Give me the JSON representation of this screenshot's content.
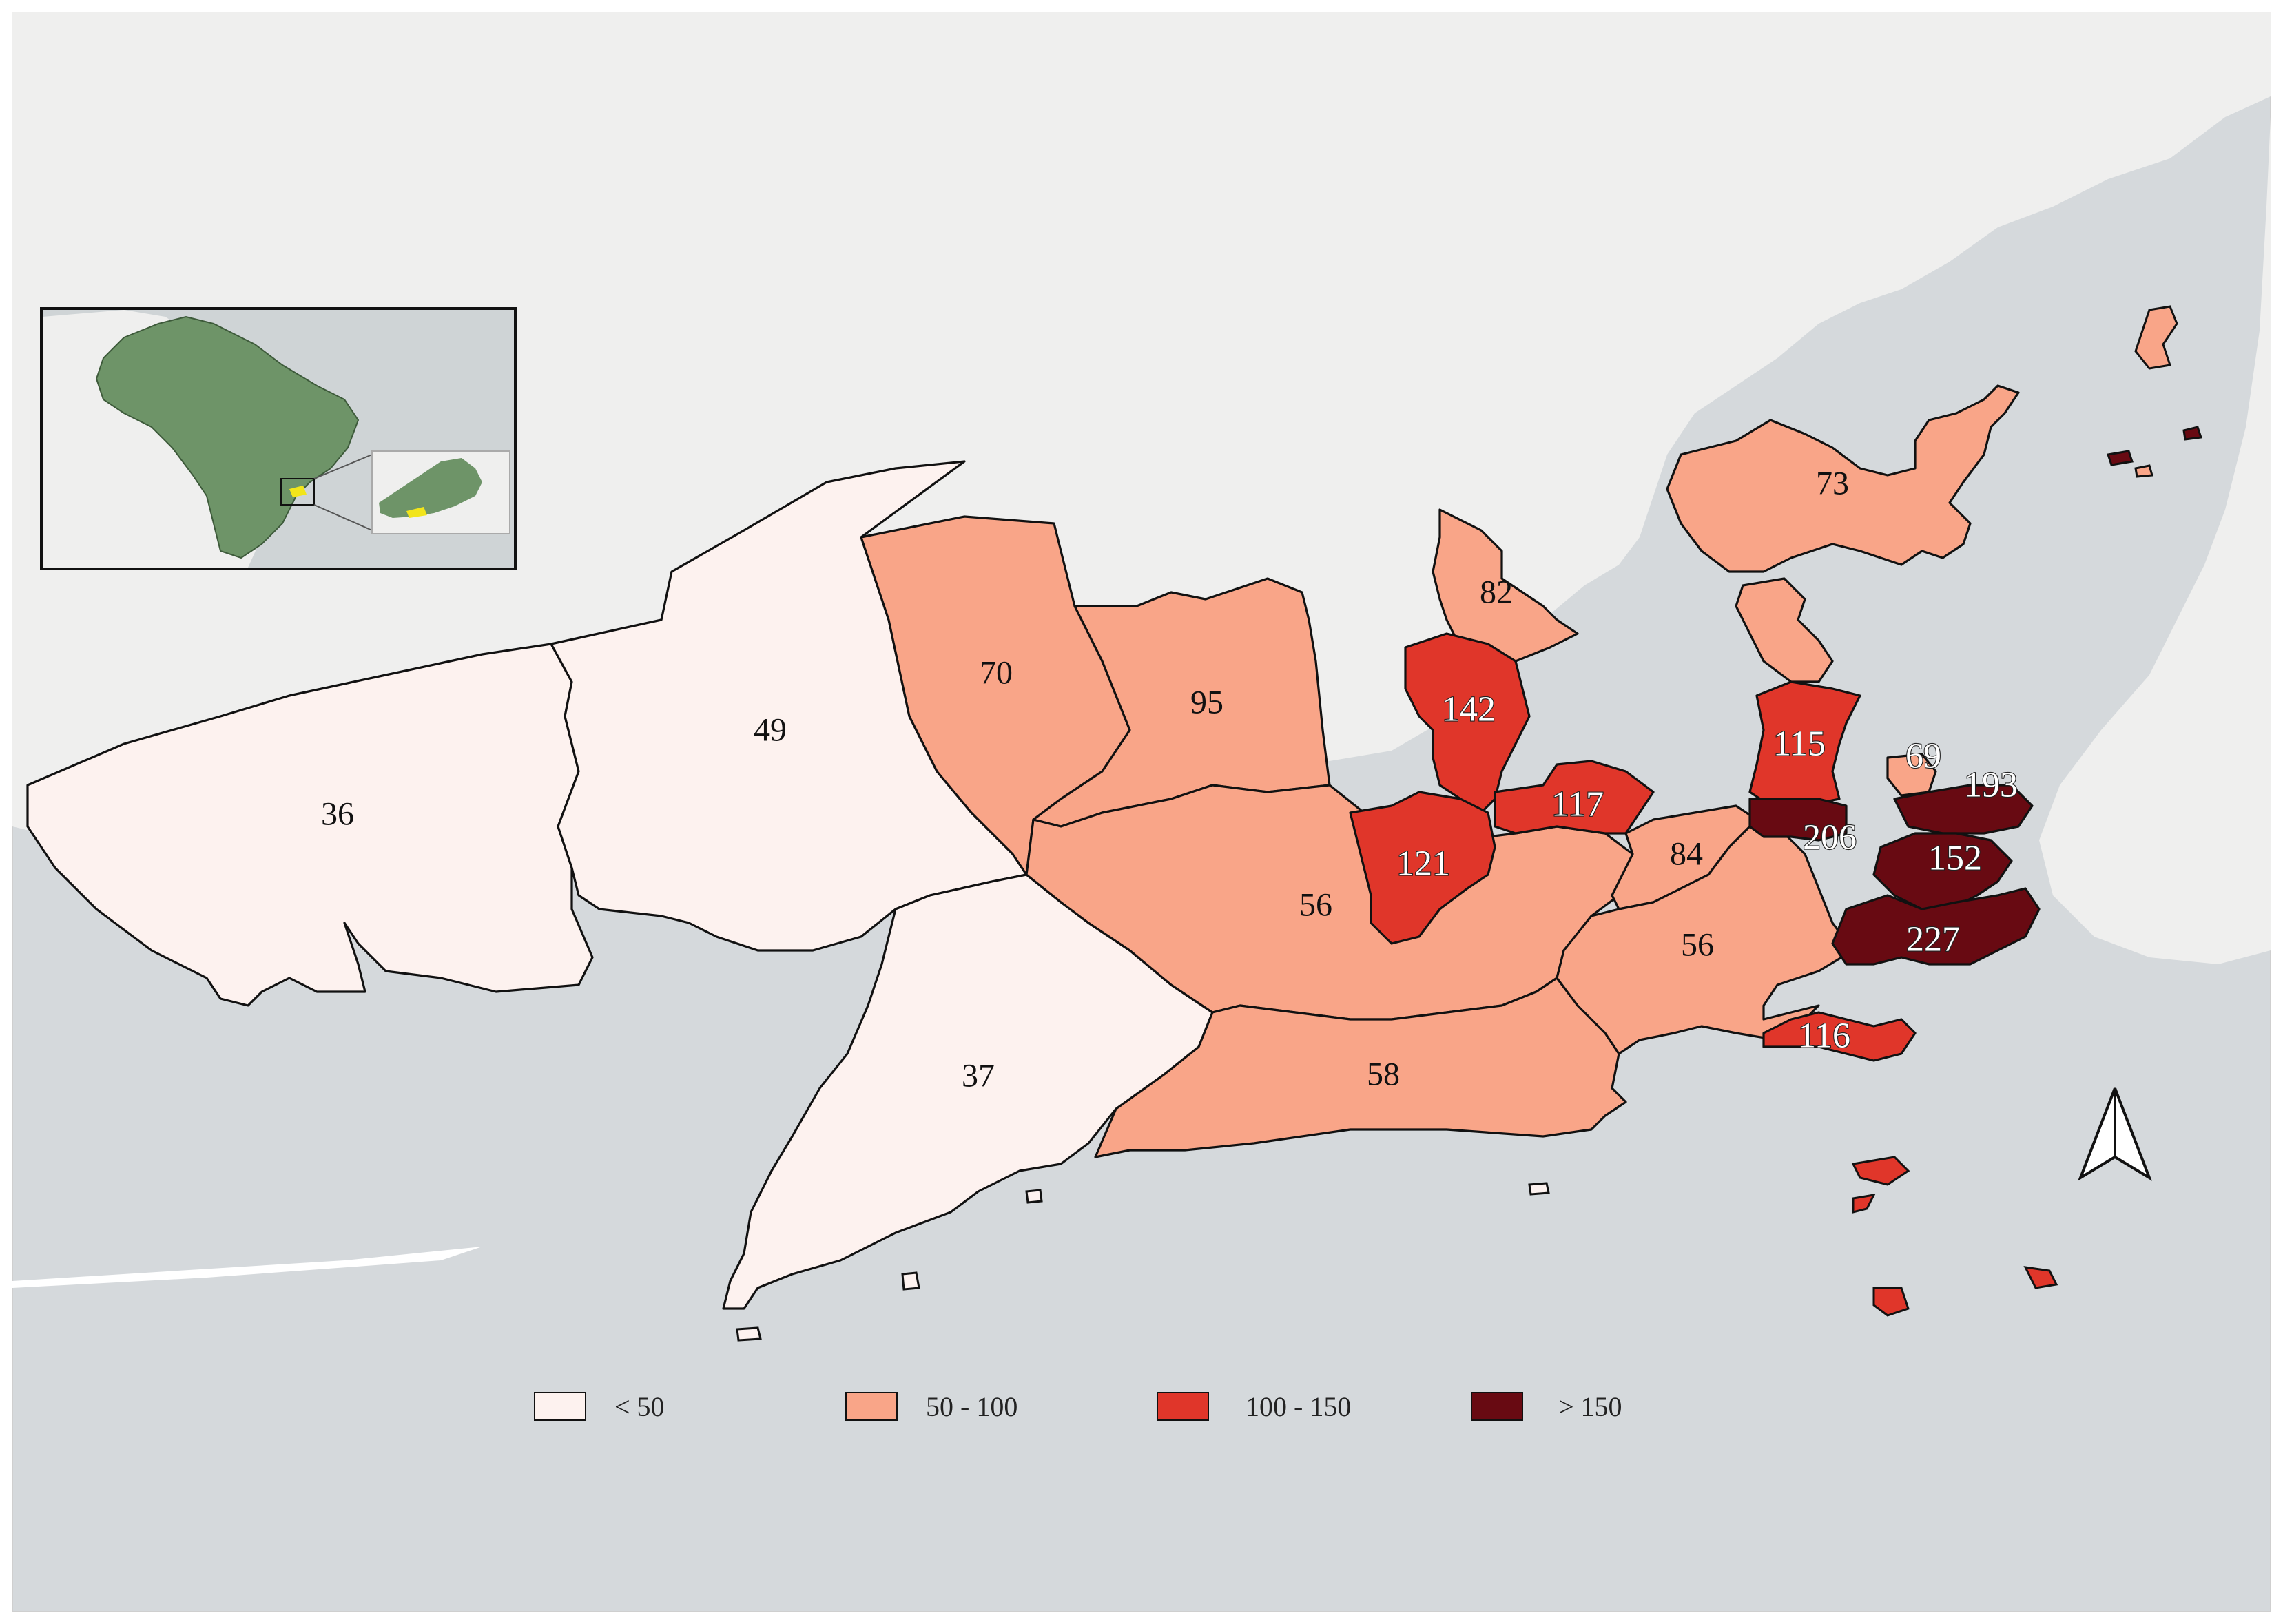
{
  "colors": {
    "background_land": "#efefee",
    "sea": "#d5d9dc",
    "class_lt50": "#fdf2ef",
    "class_50_100": "#f9a588",
    "class_100_150": "#e0362a",
    "class_gt150": "#680a12",
    "inset_land": "#6e9468",
    "inset_highlight": "#f2e51a"
  },
  "regions": [
    {
      "id": "r36",
      "value": "36"
    },
    {
      "id": "r49",
      "value": "49"
    },
    {
      "id": "r37",
      "value": "37"
    },
    {
      "id": "r70",
      "value": "70"
    },
    {
      "id": "r95",
      "value": "95"
    },
    {
      "id": "r56a",
      "value": "56"
    },
    {
      "id": "r58",
      "value": "58"
    },
    {
      "id": "r82",
      "value": "82"
    },
    {
      "id": "r142",
      "value": "142"
    },
    {
      "id": "r121",
      "value": "121"
    },
    {
      "id": "r117",
      "value": "117"
    },
    {
      "id": "r84",
      "value": "84"
    },
    {
      "id": "r56b",
      "value": "56"
    },
    {
      "id": "r73",
      "value": "73"
    },
    {
      "id": "r115",
      "value": "115"
    },
    {
      "id": "r206",
      "value": "206"
    },
    {
      "id": "r69",
      "value": "69"
    },
    {
      "id": "r193",
      "value": "193"
    },
    {
      "id": "r152",
      "value": "152"
    },
    {
      "id": "r227",
      "value": "227"
    },
    {
      "id": "r116",
      "value": "116"
    }
  ],
  "legend": [
    {
      "label": "< 50",
      "color": "#fdf2ef"
    },
    {
      "label": "50 - 100",
      "color": "#f9a588"
    },
    {
      "label": "100 - 150",
      "color": "#e0362a"
    },
    {
      "label": "> 150",
      "color": "#680a12"
    }
  ],
  "north_arrow_icon": "north-arrow-icon"
}
